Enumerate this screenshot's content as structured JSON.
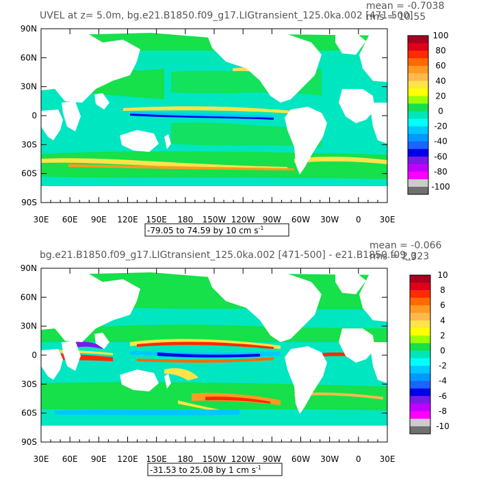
{
  "panels": [
    {
      "title": "UVEL at z=    5.0m, bg.e21.B1850.f09_g17.LIGtransient_125.0ka.002 [471-500]",
      "stat_mean": "mean = -0.7038",
      "stat_rms": "rms = 10.55",
      "range_label": "-79.05 to 74.59 by 10 cm s",
      "range_sup": "-1"
    },
    {
      "title": "bg.e21.B1850.f09_g17.LIGtransient_125.0ka.002 [471-500] - e21.B1850.f09_g",
      "stat_mean": "mean = -0.066",
      "stat_rms": "rms = 2.323",
      "range_label": "-31.53 to 25.08 by 1 cm s",
      "range_sup": "-1"
    }
  ],
  "colors": {
    "ramp_top_to_bottom": [
      "#a8001e",
      "#e0001a",
      "#ff2a00",
      "#ff6a00",
      "#ff9a22",
      "#ffb84c",
      "#ffe34a",
      "#ffff00",
      "#9cff00",
      "#16e04a",
      "#00e6b8",
      "#00ffff",
      "#00c8ff",
      "#0099ff",
      "#1c64ff",
      "#0000e8",
      "#7a1ae6",
      "#c000ff",
      "#ff00ff",
      "#cccccc",
      "#707070"
    ],
    "land": "#ffffff",
    "background_ocean": "#00e6c0",
    "box": "#000000"
  },
  "chart_data": [
    {
      "type": "heatmap",
      "title": "UVEL at z=    5.0m, bg.e21.B1850.f09_g17.LIGtransient_125.0ka.002 [471-500]",
      "x_tick_labels": [
        "30E",
        "60E",
        "90E",
        "120E",
        "150E",
        "180",
        "150W",
        "120W",
        "90W",
        "60W",
        "30W",
        "0",
        "30E"
      ],
      "y_tick_labels": [
        "90N",
        "60N",
        "30N",
        "0",
        "30S",
        "60S",
        "90S"
      ],
      "xlim": [
        30,
        390
      ],
      "ylim": [
        -90,
        90
      ],
      "colorbar_labels": [
        "100",
        "80",
        "60",
        "40",
        "20",
        "0",
        "-20",
        "-40",
        "-60",
        "-80",
        "-100"
      ],
      "colorbar_levels": [
        -100,
        -90,
        -80,
        -70,
        -60,
        -50,
        -40,
        -30,
        -20,
        -10,
        0,
        10,
        20,
        30,
        40,
        50,
        60,
        70,
        80,
        90,
        100
      ],
      "min": -79.05,
      "max": 74.59,
      "interval": 10,
      "units": "cm s-1",
      "mean": -0.7038,
      "rms": 10.55
    },
    {
      "type": "heatmap",
      "title": "bg.e21.B1850.f09_g17.LIGtransient_125.0ka.002 [471-500] - e21.B1850.f09_g",
      "x_tick_labels": [
        "30E",
        "60E",
        "90E",
        "120E",
        "150E",
        "180",
        "150W",
        "120W",
        "90W",
        "60W",
        "30W",
        "0",
        "30E"
      ],
      "y_tick_labels": [
        "90N",
        "60N",
        "30N",
        "0",
        "30S",
        "60S",
        "90S"
      ],
      "xlim": [
        30,
        390
      ],
      "ylim": [
        -90,
        90
      ],
      "colorbar_labels": [
        "10",
        "8",
        "6",
        "4",
        "2",
        "0",
        "-2",
        "-4",
        "-6",
        "-8",
        "-10"
      ],
      "colorbar_levels": [
        -10,
        -9,
        -8,
        -7,
        -6,
        -5,
        -4,
        -3,
        -2,
        -1,
        0,
        1,
        2,
        3,
        4,
        5,
        6,
        7,
        8,
        9,
        10
      ],
      "min": -31.53,
      "max": 25.08,
      "interval": 1,
      "units": "cm s-1",
      "mean": -0.066,
      "rms": 2.323
    }
  ]
}
